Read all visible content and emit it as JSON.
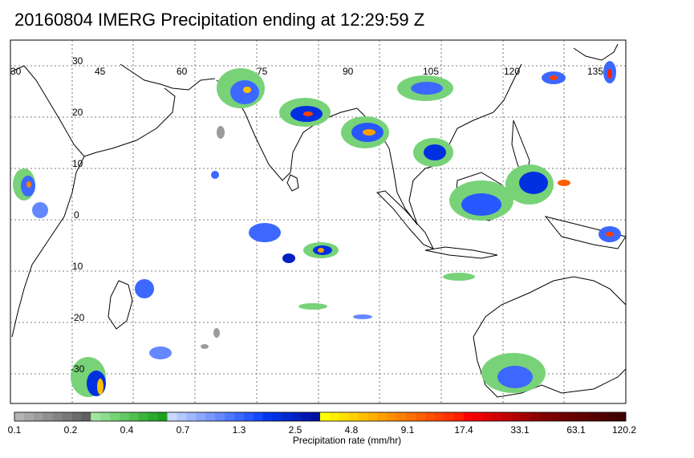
{
  "title": "20160804 IMERG Precipitation ending at 12:29:59 Z",
  "map": {
    "lon_labels": [
      "30",
      "45",
      "60",
      "75",
      "90",
      "105",
      "120",
      "135"
    ],
    "lat_labels": [
      "30",
      "20",
      "10",
      "0",
      "10",
      "-20",
      "-30"
    ],
    "grid": true,
    "projection": "cylindrical"
  },
  "colorbar": {
    "caption": "Precipitation rate (mm/hr)",
    "tick_labels": [
      "0.1",
      "0.2",
      "0.4",
      "0.7",
      "1.3",
      "2.5",
      "4.8",
      "9.1",
      "17.4",
      "33.1",
      "63.1",
      "120.2"
    ],
    "colors": [
      "#b4b4b4",
      "#a8a8a8",
      "#9c9c9c",
      "#909090",
      "#848484",
      "#787878",
      "#6c6c6c",
      "#606060",
      "#a0e6a0",
      "#8cdc8c",
      "#78d278",
      "#64c864",
      "#50be50",
      "#3cb43c",
      "#2daa2d",
      "#1ea01e",
      "#c8d8ff",
      "#b4c8ff",
      "#a0b8ff",
      "#8ca8ff",
      "#7898ff",
      "#6488ff",
      "#5078ff",
      "#3c68ff",
      "#2858ff",
      "#1448ff",
      "#0038f0",
      "#0030e0",
      "#0028d0",
      "#0020c0",
      "#0018b0",
      "#0010a0",
      "#ffff00",
      "#fff000",
      "#ffe000",
      "#ffd000",
      "#ffc000",
      "#ffb000",
      "#ffa000",
      "#ff9000",
      "#ff8000",
      "#ff7000",
      "#ff6000",
      "#ff5000",
      "#ff4000",
      "#ff3000",
      "#ff2000",
      "#ff0000",
      "#f00000",
      "#e00000",
      "#d00000",
      "#c00000",
      "#b00000",
      "#a00000",
      "#900000",
      "#800000",
      "#780000",
      "#700000",
      "#680000",
      "#600000",
      "#580000",
      "#500000",
      "#480000",
      "#400000"
    ]
  }
}
